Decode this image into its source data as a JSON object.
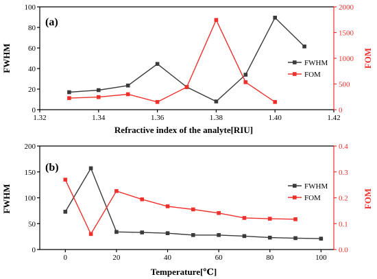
{
  "colors": {
    "fwhm": "#3a3a3a",
    "fom": "#f0302c",
    "axis": "#000000"
  },
  "chart_data": [
    {
      "type": "line",
      "panel_label": "(a)",
      "xlabel": "Refractive index of the analyte[RIU]",
      "ylabel": "FWHM",
      "y2label": "FOM",
      "xlim": [
        1.32,
        1.42
      ],
      "ylim": [
        0,
        100
      ],
      "y2lim": [
        0,
        2000
      ],
      "xticks": [
        "1.32",
        "1.34",
        "1.36",
        "1.38",
        "1.40",
        "1.42"
      ],
      "yticks": [
        "0",
        "20",
        "40",
        "60",
        "80",
        "100"
      ],
      "y2ticks": [
        "0",
        "500",
        "1000",
        "1500",
        "2000"
      ],
      "legend_position": "right",
      "series": [
        {
          "name": "FWHM",
          "axis": "left",
          "marker": "square",
          "x": [
            1.33,
            1.34,
            1.35,
            1.36,
            1.37,
            1.38,
            1.39,
            1.4,
            1.41
          ],
          "values": [
            17,
            19,
            23.5,
            44.5,
            22,
            8,
            34,
            89.5,
            61.5
          ]
        },
        {
          "name": "FOM",
          "axis": "right",
          "marker": "square",
          "x": [
            1.33,
            1.34,
            1.35,
            1.36,
            1.37,
            1.38,
            1.39,
            1.4
          ],
          "values": [
            225,
            245,
            300,
            150,
            440,
            1745,
            535,
            150
          ]
        }
      ]
    },
    {
      "type": "line",
      "panel_label": "(b)",
      "xlabel": "Temperature[℃]",
      "ylabel": "FWHM",
      "y2label": "FOM",
      "xlim": [
        -10,
        105
      ],
      "ylim": [
        0,
        200
      ],
      "y2lim": [
        0,
        0.4
      ],
      "xticks": [
        "0",
        "20",
        "40",
        "60",
        "80",
        "100"
      ],
      "xtick_values": [
        0,
        20,
        40,
        60,
        80,
        100
      ],
      "yticks": [
        "0",
        "50",
        "100",
        "150",
        "200"
      ],
      "y2ticks": [
        "0.0",
        "0.1",
        "0.2",
        "0.3",
        "0.4"
      ],
      "legend_position": "right",
      "series": [
        {
          "name": "FWHM",
          "axis": "left",
          "marker": "square",
          "x": [
            0,
            10,
            20,
            30,
            40,
            50,
            60,
            70,
            80,
            90,
            100
          ],
          "values": [
            73,
            157,
            34,
            33,
            31.5,
            28,
            28,
            26,
            23,
            22,
            21
          ]
        },
        {
          "name": "FOM",
          "axis": "right",
          "marker": "square",
          "x": [
            0,
            10,
            20,
            30,
            40,
            50,
            60,
            70,
            80,
            90
          ],
          "values": [
            0.27,
            0.06,
            0.226,
            0.194,
            0.167,
            0.155,
            0.141,
            0.122,
            0.119,
            0.117
          ]
        }
      ]
    }
  ]
}
